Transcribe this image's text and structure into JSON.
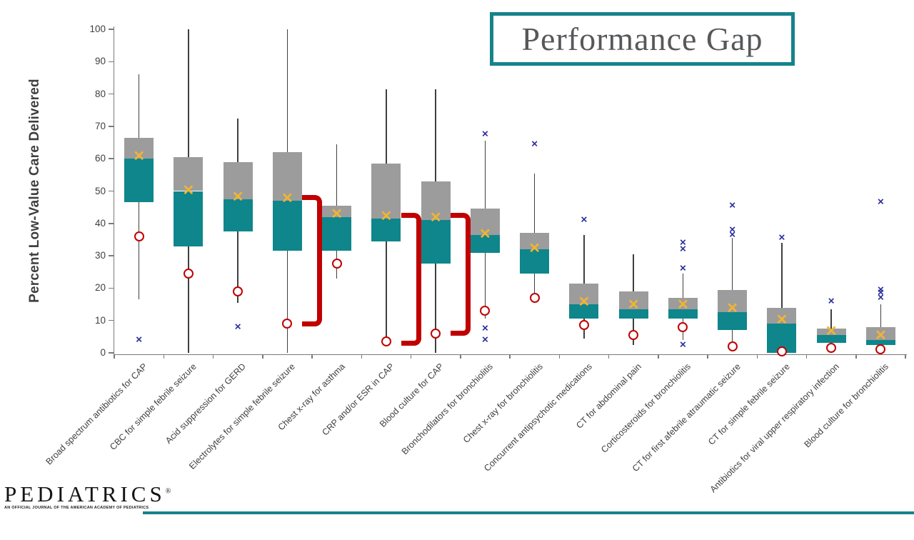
{
  "title_box": {
    "label": "Performance Gap"
  },
  "footer": {
    "logo_text": "PEDIATRICS",
    "logo_reg": "®",
    "tagline": "AN OFFICIAL JOURNAL OF THE AMERICAN ACADEMY OF PEDIATRICS"
  },
  "colors": {
    "box_upper_gray": "#9C9C9C",
    "box_lower_teal": "#0E868B",
    "mean_marker_gold": "#F1B434",
    "benchmark_circle_red": "#C00000",
    "outlier_x_navy": "#2B2E9B",
    "gap_bracket_red": "#C00000",
    "title_border_teal": "#16838A",
    "axis_gray": "#7a7a7a",
    "text_gray": "#3f3f3f"
  },
  "chart_data": {
    "type": "boxplot",
    "title": "Performance Gap",
    "xlabel": "",
    "ylabel": "Percent Low-Value Care Delivered",
    "ylim": [
      0,
      100
    ],
    "yticks": [
      0,
      10,
      20,
      30,
      40,
      50,
      60,
      70,
      80,
      90,
      100
    ],
    "grid": false,
    "legend": "none",
    "marker_semantics": {
      "gray_segment": "Q3 to median",
      "teal_segment": "median to Q1",
      "gold_x": "mean",
      "red_circle": "benchmark",
      "navy_x": "outlier",
      "red_bracket": "performance gap (median to benchmark)"
    },
    "categories": [
      "Broad spectrum antibiotics for CAP",
      "CBC for simple febrile seizure",
      "Acid suppression for GERD",
      "Electrolytes for simple febrile seizure",
      "Chest x-ray for asthma",
      "CRP and/or ESR in CAP",
      "Blood culture for CAP",
      "Bronchodilators for bronchiolitis",
      "Chest x-ray for bronchiolitis",
      "Concurrent antipsychotic medications",
      "CT for abdominal pain",
      "Corticosteroids for bronchiolitis",
      "CT for first afebrile atraumatic seizure",
      "CT for simple febrile seizure",
      "Antibiotics for viral upper respiratory infection",
      "Blood culture for bronchiolitis"
    ],
    "boxes": [
      {
        "label": "Broad spectrum antibiotics for CAP",
        "min": 16.5,
        "q1": 46.5,
        "median": 60,
        "mean": 60.5,
        "q3": 66.5,
        "max": 86,
        "benchmark": 36,
        "outliers": [
          4
        ]
      },
      {
        "label": "CBC for simple febrile seizure",
        "min": 0,
        "q1": 33,
        "median": 50,
        "mean": 50,
        "q3": 60.5,
        "max": 100,
        "benchmark": 24.5,
        "outliers": []
      },
      {
        "label": "Acid suppression for GERD",
        "min": 15.5,
        "q1": 37.5,
        "median": 47.5,
        "mean": 48,
        "q3": 59,
        "max": 72.5,
        "benchmark": 19,
        "outliers": [
          8
        ]
      },
      {
        "label": "Electrolytes for simple febrile seizure",
        "min": 0,
        "q1": 31.5,
        "median": 47,
        "mean": 47.5,
        "q3": 62,
        "max": 100,
        "benchmark": 9,
        "outliers": []
      },
      {
        "label": "Chest x-ray for asthma",
        "min": 23,
        "q1": 31.5,
        "median": 42,
        "mean": 42.5,
        "q3": 45.5,
        "max": 64.5,
        "benchmark": 27.5,
        "outliers": []
      },
      {
        "label": "CRP and/or ESR in CAP",
        "min": 2.5,
        "q1": 34.5,
        "median": 41.5,
        "mean": 42,
        "q3": 58.5,
        "max": 81.5,
        "benchmark": 3.5,
        "outliers": []
      },
      {
        "label": "Blood culture for CAP",
        "min": 0,
        "q1": 27.5,
        "median": 41,
        "mean": 41.5,
        "q3": 53,
        "max": 81.5,
        "benchmark": 6,
        "outliers": []
      },
      {
        "label": "Bronchodilators for bronchiolitis",
        "min": 10.5,
        "q1": 31,
        "median": 36.5,
        "mean": 36.5,
        "q3": 44.5,
        "max": 65.5,
        "benchmark": 13,
        "outliers": [
          67.5,
          7.5,
          4
        ]
      },
      {
        "label": "Chest x-ray for bronchiolitis",
        "min": 18,
        "q1": 24.5,
        "median": 32,
        "mean": 32,
        "q3": 37,
        "max": 55.5,
        "benchmark": 17,
        "outliers": [
          64.5
        ]
      },
      {
        "label": "Concurrent antipsychotic medications",
        "min": 4.5,
        "q1": 10.5,
        "median": 15,
        "mean": 15.5,
        "q3": 21.5,
        "max": 36.5,
        "benchmark": 8.5,
        "outliers": [
          41
        ]
      },
      {
        "label": "CT for abdominal pain",
        "min": 2.5,
        "q1": 10.5,
        "median": 13.5,
        "mean": 14.5,
        "q3": 19,
        "max": 30.5,
        "benchmark": 5.5,
        "outliers": []
      },
      {
        "label": "Corticosteroids for bronchiolitis",
        "min": 4,
        "q1": 10.5,
        "median": 13.5,
        "mean": 14.5,
        "q3": 17,
        "max": 24.5,
        "benchmark": 8,
        "outliers": [
          34,
          32,
          26,
          2.5
        ]
      },
      {
        "label": "CT for first afebrile atraumatic seizure",
        "min": 3.5,
        "q1": 7,
        "median": 12.5,
        "mean": 13.5,
        "q3": 19.5,
        "max": 35.5,
        "benchmark": 2,
        "outliers": [
          45.5,
          38,
          36.5
        ]
      },
      {
        "label": "CT for simple febrile seizure",
        "min": 0,
        "q1": 0,
        "median": 9,
        "mean": 10,
        "q3": 14,
        "max": 34,
        "benchmark": 0.5,
        "outliers": [
          35.5
        ]
      },
      {
        "label": "Antibiotics for viral upper respiratory infection",
        "min": 2,
        "q1": 3,
        "median": 5.5,
        "mean": 6.5,
        "q3": 7.5,
        "max": 13.5,
        "benchmark": 1.5,
        "outliers": [
          16
        ]
      },
      {
        "label": "Blood culture for bronchiolitis",
        "min": 1,
        "q1": 2.5,
        "median": 4,
        "mean": 5,
        "q3": 8,
        "max": 15,
        "benchmark": 1,
        "outliers": [
          46.5,
          19.5,
          18.5,
          17
        ]
      }
    ],
    "brackets": [
      {
        "box": 4,
        "top": 48,
        "bottom": 9
      },
      {
        "box": 6,
        "top": 42.5,
        "bottom": 3
      },
      {
        "box": 7,
        "top": 42.5,
        "bottom": 6
      }
    ]
  }
}
